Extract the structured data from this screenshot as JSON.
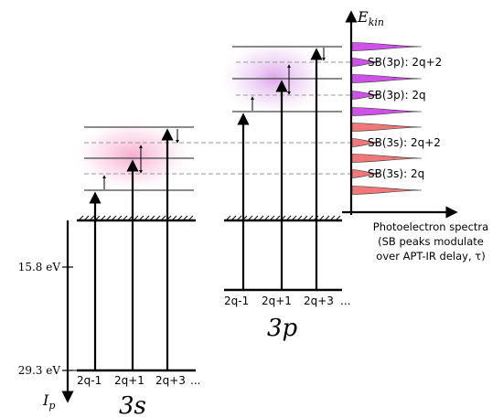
{
  "atoms": {
    "s": {
      "name": "3s",
      "ip_label": "29.3 eV",
      "orders": [
        "2q-1",
        "2q+1",
        "2q+3"
      ],
      "ellipsis": "..."
    },
    "p": {
      "name": "3p",
      "ip_label": "15.8 eV",
      "orders": [
        "2q-1",
        "2q+1",
        "2q+3"
      ],
      "ellipsis": "..."
    }
  },
  "axes": {
    "energy_label": "E",
    "energy_sub": "kin",
    "ip_label": "I",
    "ip_sub": "p"
  },
  "sideband_labels": [
    "SB(3p): 2q+2",
    "SB(3p): 2q",
    "SB(3s): 2q+2",
    "SB(3s): 2q"
  ],
  "caption": {
    "line1": "Photoelectron spectra",
    "line2": "(SB peaks modulate",
    "line3": "over APT-IR delay, τ)"
  },
  "colors": {
    "glow_3s": "#f06aa4",
    "glow_3p": "#c15ad9",
    "peak_3s": "#f07878",
    "peak_3p": "#cf52e8"
  }
}
